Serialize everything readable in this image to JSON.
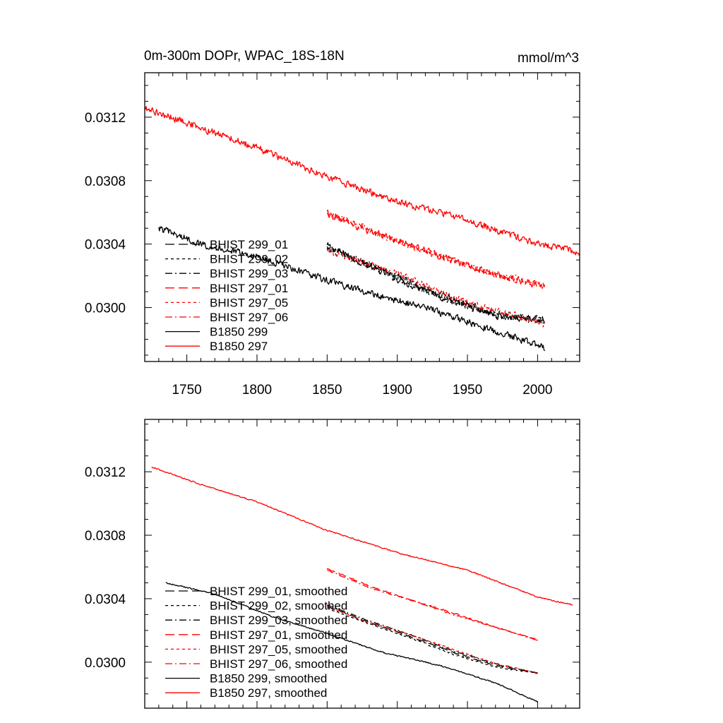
{
  "chart_data": [
    {
      "type": "line",
      "title": "0m-300m DOPr, WPAC_18S-18N",
      "units": "mmol/m^3",
      "xlim": [
        1720,
        2030
      ],
      "ylim": [
        0.02966,
        0.03148
      ],
      "xticks": [
        1750,
        1800,
        1850,
        1900,
        1950,
        2000
      ],
      "xtick_labels": [
        "1750",
        "1800",
        "1850",
        "1900",
        "1950",
        "2000"
      ],
      "yticks": [
        0.03,
        0.0304,
        0.0308,
        0.0312
      ],
      "ytick_labels": [
        "0.0300",
        "0.0304",
        "0.0308",
        "0.0312"
      ],
      "legend_position": "bottom-left",
      "grid": false,
      "series": [
        {
          "name": "BHIST 299_01",
          "color": "#000000",
          "dash": "long-dash",
          "noise": 2.8e-05,
          "x": [
            1850,
            1880,
            1910,
            1940,
            1970,
            2005
          ],
          "y": [
            0.03039,
            0.03026,
            0.03014,
            0.03004,
            0.02995,
            0.02992
          ]
        },
        {
          "name": "BHIST 299_02",
          "color": "#000000",
          "dash": "short-dash",
          "noise": 2.8e-05,
          "x": [
            1850,
            1880,
            1910,
            1940,
            1970,
            2005
          ],
          "y": [
            0.03037,
            0.03027,
            0.03015,
            0.03003,
            0.02995,
            0.02991
          ]
        },
        {
          "name": "BHIST 299_03",
          "color": "#000000",
          "dash": "dash-dot",
          "noise": 2.8e-05,
          "x": [
            1850,
            1880,
            1910,
            1940,
            1970,
            2005
          ],
          "y": [
            0.03038,
            0.03027,
            0.03016,
            0.03005,
            0.02996,
            0.02992
          ]
        },
        {
          "name": "BHIST 297_01",
          "color": "#ff0000",
          "dash": "long-dash",
          "noise": 2.8e-05,
          "x": [
            1850,
            1880,
            1910,
            1940,
            1970,
            2005
          ],
          "y": [
            0.03059,
            0.03048,
            0.03039,
            0.03029,
            0.03021,
            0.03013
          ]
        },
        {
          "name": "BHIST 297_05",
          "color": "#ff0000",
          "dash": "short-dash",
          "noise": 2.8e-05,
          "x": [
            1850,
            1880,
            1910,
            1940,
            1970,
            2005
          ],
          "y": [
            0.03036,
            0.03027,
            0.03018,
            0.03006,
            0.02998,
            0.0299
          ]
        },
        {
          "name": "BHIST 297_06",
          "color": "#ff0000",
          "dash": "dash-dot",
          "noise": 2.8e-05,
          "x": [
            1850,
            1880,
            1910,
            1940,
            1970,
            2005
          ],
          "y": [
            0.0306,
            0.03049,
            0.03039,
            0.0303,
            0.03021,
            0.03014
          ]
        },
        {
          "name": "B1850 299",
          "color": "#000000",
          "dash": "solid",
          "noise": 2.8e-05,
          "x": [
            1730,
            1760,
            1800,
            1840,
            1880,
            1920,
            1960,
            2005
          ],
          "y": [
            0.0305,
            0.0304,
            0.03032,
            0.0302,
            0.03009,
            0.03,
            0.02988,
            0.02975
          ]
        },
        {
          "name": "B1850 297",
          "color": "#ff0000",
          "dash": "solid",
          "noise": 2.8e-05,
          "x": [
            1720,
            1760,
            1800,
            1850,
            1900,
            1950,
            2000,
            2030
          ],
          "y": [
            0.03126,
            0.03113,
            0.03101,
            0.03082,
            0.03067,
            0.03055,
            0.0304,
            0.03035
          ]
        }
      ]
    },
    {
      "type": "line",
      "title": "",
      "units": "",
      "xlim": [
        1720,
        2030
      ],
      "ylim": [
        0.02971,
        0.03153
      ],
      "xticks": [
        1750,
        1800,
        1850,
        1900,
        1950,
        2000
      ],
      "xtick_labels": [],
      "yticks": [
        0.03,
        0.0304,
        0.0308,
        0.0312
      ],
      "ytick_labels": [
        "0.0300",
        "0.0304",
        "0.0308",
        "0.0312"
      ],
      "legend_position": "bottom-left",
      "grid": false,
      "series": [
        {
          "name": "BHIST 299_01, smoothed",
          "color": "#000000",
          "dash": "long-dash",
          "noise": 5e-06,
          "x": [
            1850,
            1880,
            1910,
            1940,
            1970,
            2000
          ],
          "y": [
            0.03035,
            0.03025,
            0.03016,
            0.03006,
            0.02998,
            0.02993
          ]
        },
        {
          "name": "BHIST 299_02, smoothed",
          "color": "#000000",
          "dash": "short-dash",
          "noise": 5e-06,
          "x": [
            1850,
            1880,
            1910,
            1940,
            1970,
            2000
          ],
          "y": [
            0.03034,
            0.03024,
            0.03015,
            0.03005,
            0.02997,
            0.02993
          ]
        },
        {
          "name": "BHIST 299_03, smoothed",
          "color": "#000000",
          "dash": "dash-dot",
          "noise": 5e-06,
          "x": [
            1850,
            1880,
            1910,
            1940,
            1970,
            2000
          ],
          "y": [
            0.03036,
            0.03026,
            0.03017,
            0.03007,
            0.02999,
            0.02993
          ]
        },
        {
          "name": "BHIST 297_01, smoothed",
          "color": "#ff0000",
          "dash": "long-dash",
          "noise": 5e-06,
          "x": [
            1850,
            1880,
            1910,
            1940,
            1970,
            2000
          ],
          "y": [
            0.03059,
            0.03048,
            0.03039,
            0.03031,
            0.03022,
            0.03014
          ]
        },
        {
          "name": "BHIST 297_05, smoothed",
          "color": "#ff0000",
          "dash": "short-dash",
          "noise": 5e-06,
          "x": [
            1850,
            1880,
            1910,
            1940,
            1970,
            2000
          ],
          "y": [
            0.03035,
            0.03025,
            0.03017,
            0.03008,
            0.02999,
            0.02993
          ]
        },
        {
          "name": "BHIST 297_06, smoothed",
          "color": "#ff0000",
          "dash": "dash-dot",
          "noise": 5e-06,
          "x": [
            1850,
            1880,
            1910,
            1940,
            1970,
            2000
          ],
          "y": [
            0.03058,
            0.03047,
            0.03039,
            0.0303,
            0.03022,
            0.03014
          ]
        },
        {
          "name": "B1850 299, smoothed",
          "color": "#000000",
          "dash": "solid",
          "noise": 5e-06,
          "x": [
            1735,
            1770,
            1810,
            1850,
            1890,
            1930,
            1970,
            2000
          ],
          "y": [
            0.0305,
            0.03043,
            0.03029,
            0.03018,
            0.03006,
            0.02998,
            0.02987,
            0.02975
          ]
        },
        {
          "name": "B1850 297, smoothed",
          "color": "#ff0000",
          "dash": "solid",
          "noise": 5e-06,
          "x": [
            1725,
            1760,
            1800,
            1850,
            1900,
            1950,
            2000,
            2025
          ],
          "y": [
            0.03123,
            0.03112,
            0.03101,
            0.03083,
            0.03069,
            0.03058,
            0.03041,
            0.03036
          ]
        }
      ]
    }
  ]
}
